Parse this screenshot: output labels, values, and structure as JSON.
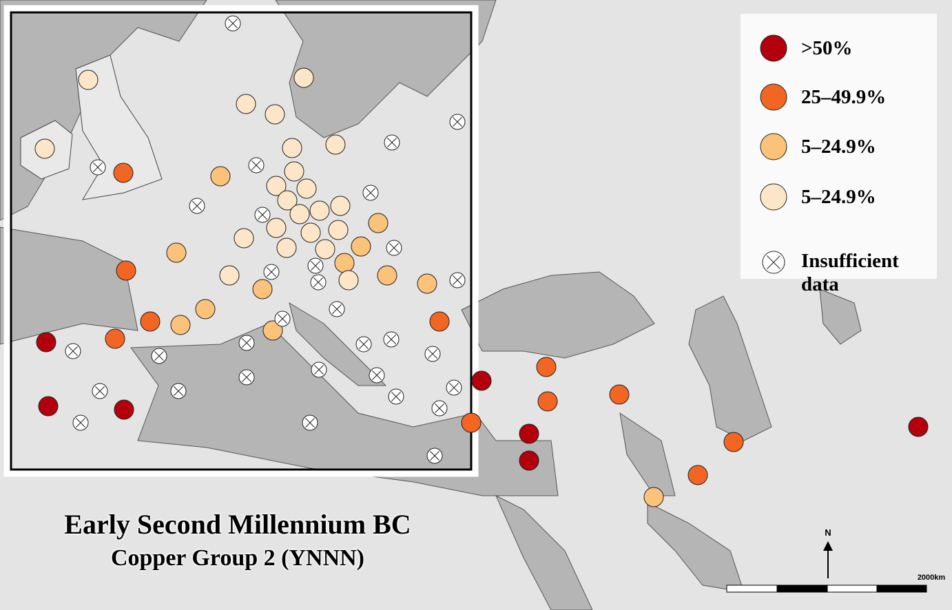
{
  "title": "Early Second Millennium BC",
  "subtitle": "Copper Group 2 (YNNN)",
  "legend": {
    "items": [
      {
        "label": ">50%",
        "color": "#b3000c"
      },
      {
        "label": "25–49.9%",
        "color": "#f26522"
      },
      {
        "label": "5–24.9%",
        "color": "#fbc27a"
      },
      {
        "label": "5–24.9%",
        "color": "#fde6c8"
      },
      {
        "label": "Insufficient data"
      }
    ]
  },
  "north": "N",
  "scale": "2000km"
}
